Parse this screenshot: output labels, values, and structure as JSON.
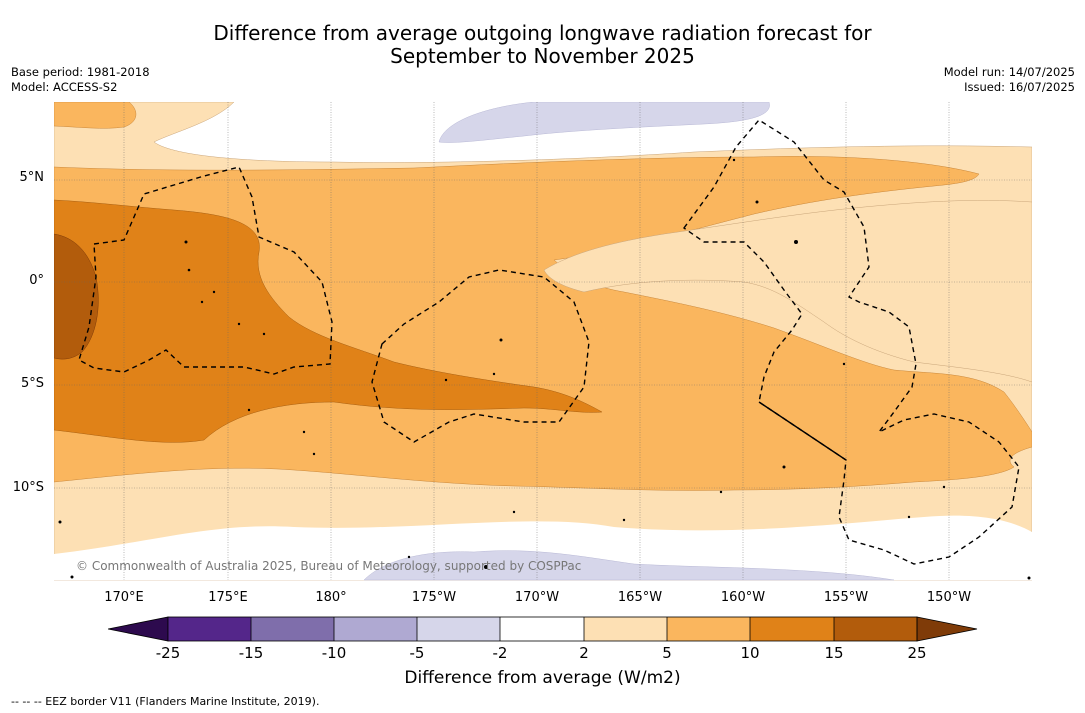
{
  "header": {
    "title_line1": "Difference from average outgoing longwave radiation forecast for",
    "title_line2": "September to November 2025",
    "base_period": "Base period: 1981-2018",
    "model": "Model: ACCESS-S2",
    "model_run": "Model run: 14/07/2025",
    "issued": "Issued: 16/07/2025"
  },
  "map": {
    "lat_labels": [
      "5°N",
      "0°",
      "5°S",
      "10°S"
    ],
    "lon_labels": [
      "170°E",
      "175°E",
      "180°",
      "175°W",
      "170°W",
      "165°W",
      "160°W",
      "155°W",
      "150°W"
    ],
    "copyright": "© Commonwealth of Australia 2025, Bureau of Meteorology, supported by COSPPac",
    "gridlines": true
  },
  "colorbar": {
    "label": "Difference from average (W/m2)",
    "ticks": [
      "-25",
      "-15",
      "-10",
      "-5",
      "-2",
      "2",
      "5",
      "10",
      "15",
      "25"
    ],
    "colors": {
      "below": "#2d0a4e",
      "neg25_15": "#54268a",
      "neg15_10": "#7f6eab",
      "neg10_5": "#afa9d2",
      "neg5_2": "#d6d6ea",
      "neg2_2": "#ffffff",
      "pos2_5": "#fde0b4",
      "pos5_10": "#fab65e",
      "pos10_15": "#e08218",
      "pos15_25": "#b25c0c",
      "above": "#7f3b08"
    }
  },
  "footer": {
    "eez_legend": "--  --  -- EEZ border V11 (Flanders Marine Institute, 2019)."
  }
}
